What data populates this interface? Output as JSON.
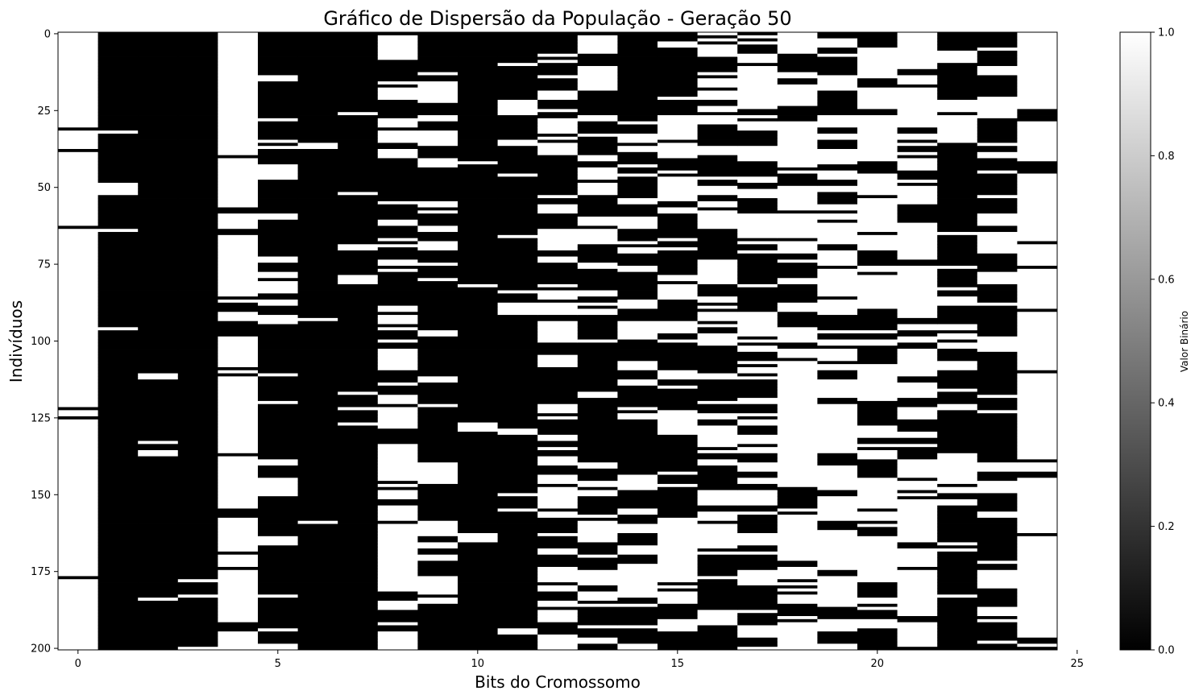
{
  "chart_data": {
    "type": "heatmap",
    "title": "Gráfico de Dispersão da População - Geração 50",
    "xlabel": "Bits do Cromossomo",
    "ylabel": "Indivíduos",
    "colorbar_label": "Valor Binário",
    "colormap": "gray",
    "colors": {
      "zero": "#000000",
      "one": "#ffffff"
    },
    "n_rows": 201,
    "n_cols": 25,
    "xlim": [
      -0.5,
      24.5
    ],
    "ylim": [
      200,
      0
    ],
    "x_ticks": [
      "0",
      "5",
      "10",
      "15",
      "20",
      "25"
    ],
    "x_tick_values": [
      0,
      5,
      10,
      15,
      20,
      25
    ],
    "y_ticks": [
      "0",
      "25",
      "50",
      "75",
      "100",
      "125",
      "150",
      "175",
      "200"
    ],
    "y_tick_values": [
      0,
      25,
      50,
      75,
      100,
      125,
      150,
      175,
      200
    ],
    "colorbar_ticks": [
      "0.0",
      "0.2",
      "0.4",
      "0.6",
      "0.8",
      "1.0"
    ],
    "colorbar_tick_values": [
      0.0,
      0.2,
      0.4,
      0.6,
      0.8,
      1.0
    ],
    "column_ones_fraction": [
      0.97,
      0.03,
      0.04,
      0.03,
      0.85,
      0.12,
      0.04,
      0.06,
      0.5,
      0.2,
      0.05,
      0.12,
      0.5,
      0.4,
      0.35,
      0.5,
      0.45,
      0.5,
      0.7,
      0.65,
      0.6,
      0.65,
      0.2,
      0.35,
      0.85
    ],
    "rows_with_col0_zero": [
      31,
      38,
      63,
      122,
      125,
      177
    ]
  }
}
